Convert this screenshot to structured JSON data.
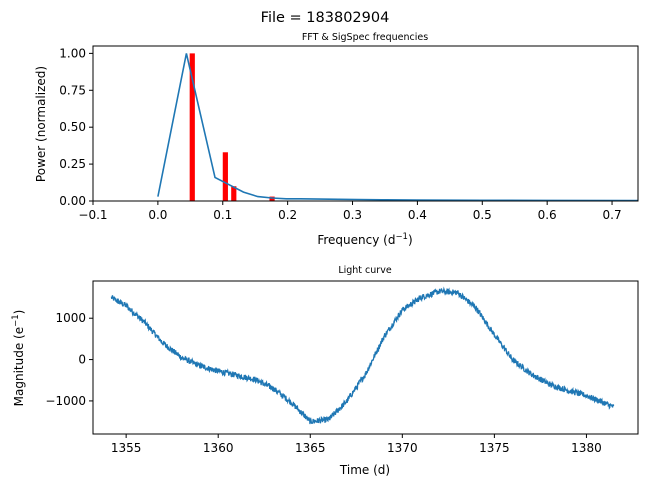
{
  "figure_title": "File = 183802904",
  "chart_data": [
    {
      "type": "line",
      "title": "FFT & SigSpec frequencies",
      "xlabel_main": "Frequency (d",
      "xlabel_sup": "−1",
      "xlabel_end": ")",
      "ylabel": "Power (normalized)",
      "xlim": [
        -0.1,
        0.74
      ],
      "ylim": [
        0,
        1.05
      ],
      "xticks": [
        -0.1,
        0.0,
        0.1,
        0.2,
        0.3,
        0.4,
        0.5,
        0.6,
        0.7
      ],
      "xtick_labels": [
        "−0.1",
        "0.0",
        "0.1",
        "0.2",
        "0.3",
        "0.4",
        "0.5",
        "0.6",
        "0.7"
      ],
      "yticks": [
        0,
        0.25,
        0.5,
        0.75,
        1.0
      ],
      "ytick_labels": [
        "0.00",
        "0.25",
        "0.50",
        "0.75",
        "1.00"
      ],
      "grid": false,
      "series": [
        {
          "kind": "line",
          "color": "#1f77b4",
          "x": [
            0.0,
            0.044,
            0.088,
            0.11,
            0.132,
            0.154,
            0.176,
            0.198,
            0.22,
            0.264,
            0.308,
            0.352,
            0.4,
            0.5,
            0.6,
            0.74
          ],
          "y": [
            0.03,
            1.0,
            0.16,
            0.11,
            0.06,
            0.03,
            0.02,
            0.015,
            0.015,
            0.012,
            0.01,
            0.008,
            0.006,
            0.005,
            0.004,
            0.003
          ]
        },
        {
          "kind": "bar",
          "color": "#ff0000",
          "width": 0.008,
          "x": [
            0.053,
            0.104,
            0.117,
            0.176
          ],
          "y": [
            1.0,
            0.33,
            0.1,
            0.03
          ]
        }
      ]
    },
    {
      "type": "line",
      "title": "Light curve",
      "xlabel": "Time (d)",
      "ylabel_main": "Magnitude (e",
      "ylabel_sup": "−1",
      "ylabel_end": ")",
      "xlim": [
        1353.2,
        1382.8
      ],
      "ylim": [
        -1800,
        1900
      ],
      "xticks": [
        1355,
        1360,
        1365,
        1370,
        1375,
        1380
      ],
      "xtick_labels": [
        "1355",
        "1360",
        "1365",
        "1370",
        "1375",
        "1380"
      ],
      "yticks": [
        -1000,
        0,
        1000
      ],
      "ytick_labels": [
        "−1000",
        "0",
        "1000"
      ],
      "grid": false,
      "series": [
        {
          "color": "#1f77b4",
          "noise_amplitude": 70,
          "x": [
            1354.2,
            1355.0,
            1356.0,
            1357.0,
            1358.0,
            1359.0,
            1360.0,
            1361.0,
            1362.0,
            1363.0,
            1364.0,
            1365.0,
            1366.0,
            1367.0,
            1368.0,
            1369.0,
            1370.0,
            1371.0,
            1372.0,
            1373.0,
            1374.0,
            1375.0,
            1376.0,
            1377.0,
            1378.0,
            1379.0,
            1380.0,
            1381.5
          ],
          "y": [
            1500,
            1300,
            900,
            400,
            50,
            -150,
            -280,
            -380,
            -480,
            -700,
            -1050,
            -1500,
            -1450,
            -1000,
            -350,
            550,
            1200,
            1500,
            1650,
            1620,
            1250,
            600,
            -10,
            -350,
            -600,
            -750,
            -870,
            -1150
          ]
        }
      ]
    }
  ]
}
